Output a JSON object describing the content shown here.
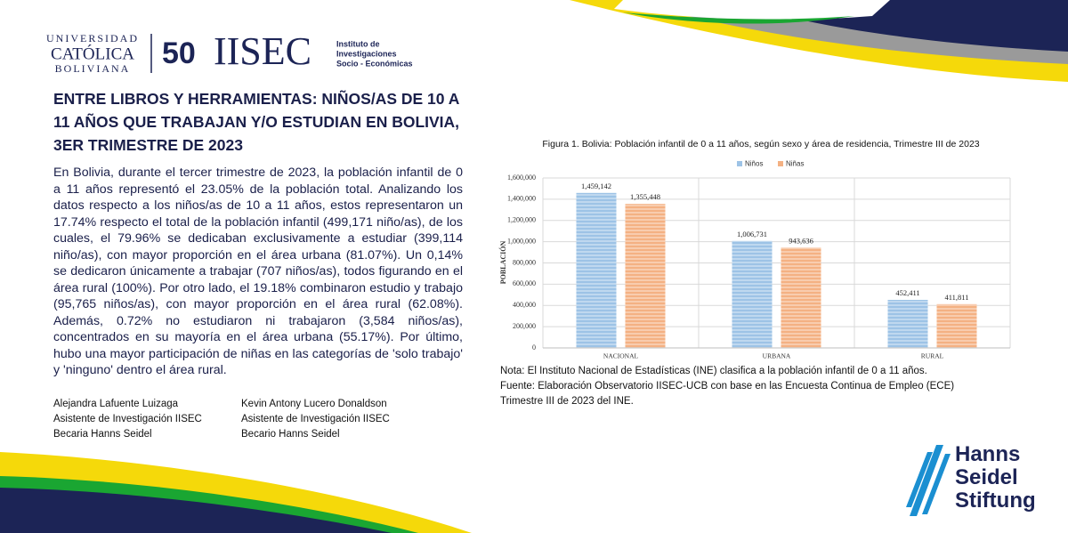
{
  "header": {
    "university": [
      "UNIVERSIDAD",
      "CATÓLICA",
      "BOLIVIANA"
    ],
    "institute_mark": "50",
    "institute": "IISEC",
    "institute_name": [
      "Instituto de",
      "Investigaciones",
      "Socio - Económicas"
    ]
  },
  "title": "ENTRE LIBROS Y HERRAMIENTAS: NIÑOS/AS DE 10 A 11 AÑOS QUE TRABAJAN Y/O ESTUDIAN EN BOLIVIA, 3ER TRIMESTRE DE 2023",
  "body": "En Bolivia, durante el tercer trimestre de 2023, la población infantil de 0 a 11 años representó el 23.05% de la población total. Analizando los datos respecto a los niños/as de 10 a 11 años, estos representaron un 17.74% respecto el total de la población infantil (499,171 niño/as), de los cuales, el 79.96% se dedicaban exclusivamente a estudiar (399,114 niño/as), con mayor proporción en el área urbana (81.07%). Un 0,14% se dedicaron únicamente a trabajar (707 niños/as), todos figurando en el área rural (100%). Por otro lado, el 19.18% combinaron estudio y trabajo (95,765 niños/as), con mayor proporción en el área rural (62.08%). Además, 0.72% no estudiaron ni trabajaron (3,584 niños/as), concentrados en su mayoría en el área urbana (55.17%). Por último, hubo una mayor participación de niñas en las categorías de 'solo trabajo' y 'ninguno' dentro el área rural.",
  "authors": [
    [
      "Alejandra Lafuente Luizaga",
      "Asistente de Investigación IISEC",
      "Becaria Hanns Seidel"
    ],
    [
      "Kevin Antony Lucero Donaldson",
      "Asistente de Investigación IISEC",
      "Becario Hanns Seidel"
    ]
  ],
  "chart_data": {
    "type": "bar",
    "title": "Figura 1. Bolivia: Población infantil de 0 a 11 años, según sexo y área de residencia, Trimestre III de 2023",
    "y_label": "POBLACIÓN",
    "categories": [
      "NACIONAL",
      "URBANA",
      "RURAL"
    ],
    "series": [
      {
        "name": "Niños",
        "color": "#9dc3e6",
        "values": [
          1459142,
          1006731,
          452411
        ],
        "value_labels": [
          "1,459,142",
          "1,006,731",
          "452,411"
        ]
      },
      {
        "name": "Niñas",
        "color": "#f4b183",
        "values": [
          1355448,
          943636,
          411811
        ],
        "value_labels": [
          "1,355,448",
          "943,636",
          "411,811"
        ]
      }
    ],
    "ylim": [
      0,
      1600000
    ],
    "yticks": [
      0,
      {
        "value": 200000,
        "label": "200,000"
      },
      {
        "value": 400000,
        "label": "400,000"
      },
      {
        "value": 600000,
        "label": "600,000"
      },
      {
        "value": 800000,
        "label": "800,000"
      },
      {
        "value": 1000000,
        "label": "1,000,000"
      },
      {
        "value": 1200000,
        "label": "1,200,000"
      },
      {
        "value": 1400000,
        "label": "1,400,000"
      },
      {
        "value": 1600000,
        "label": "1,600,000"
      }
    ],
    "grid": true,
    "legend": "top"
  },
  "notes": [
    "Nota: El Instituto Nacional de Estadísticas (INE) clasifica a la población infantil de 0 a 11 años.",
    "Fuente: Elaboración Observatorio IISEC-UCB con base en las Encuesta Continua de Empleo (ECE) Trimestre III de 2023 del INE."
  ],
  "sponsor": [
    "Hanns",
    "Seidel",
    "Stiftung"
  ]
}
